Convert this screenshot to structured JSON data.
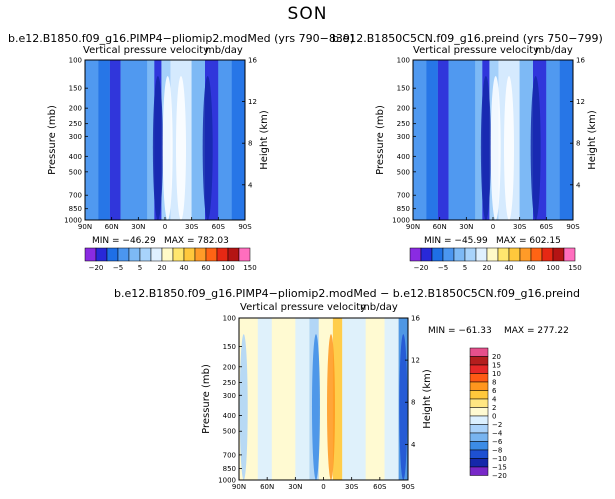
{
  "figure": {
    "title": "SON"
  },
  "panels": [
    {
      "id": "left",
      "case_title": "b.e12.B1850.f09_g16.PIMP4−pliomip2.modMed  (yrs 790−839)",
      "inner_title": "Vertical pressure velocity",
      "units": "mb/day",
      "min_text": "MIN = −46.29",
      "max_text": "MAX = 782.03"
    },
    {
      "id": "right",
      "case_title": "b.e12.B1850C5CN.f09_g16.preind  (yrs 750−799)",
      "inner_title": "Vertical pressure velocity",
      "units": "mb/day",
      "min_text": "MIN = −45.99",
      "max_text": "MAX = 602.15"
    },
    {
      "id": "diff",
      "case_title": "b.e12.B1850.f09_g16.PIMP4−pliomip2.modMed  −  b.e12.B1850C5CN.f09_g16.preind",
      "inner_title": "Vertical pressure velocity",
      "units": "mb/day",
      "min_text": "MIN = −61.33",
      "max_text": "MAX = 277.22"
    }
  ],
  "chart_data": {
    "type": "heatmap",
    "title": "SON",
    "xlabel": "",
    "ylabel": "Pressure (mb)",
    "ylabel_right": "Height (km)",
    "x_ticks": [
      "90N",
      "60N",
      "30N",
      "0",
      "30S",
      "60S",
      "90S"
    ],
    "y_ticks": [
      100,
      150,
      200,
      250,
      300,
      400,
      500,
      700,
      850,
      1000
    ],
    "y_ticks_right": [
      16,
      12,
      8,
      4
    ],
    "ylim": [
      100,
      1000
    ],
    "xlim": [
      90,
      -90
    ],
    "colorbar_levels": [
      "−20",
      "−5",
      "5",
      "20",
      "40",
      "60",
      "100",
      "150"
    ],
    "diff_colorbar_levels": [
      "20",
      "15",
      "10",
      "8",
      "6",
      "4",
      "2",
      "0",
      "−2",
      "−4",
      "−6",
      "−8",
      "−10",
      "−15",
      "−20"
    ],
    "abs_colors": [
      "#8a2be2",
      "#2828d8",
      "#1e6fe6",
      "#4b96f0",
      "#7db9f5",
      "#a8d3fb",
      "#dff0ff",
      "#fffac8",
      "#ffe66e",
      "#ffc83c",
      "#ff9b28",
      "#ff6414",
      "#e62814",
      "#b41414",
      "#ff6ebe"
    ],
    "diff_colors": [
      "#e6508c",
      "#b41e1e",
      "#e62828",
      "#ff5a14",
      "#ff961e",
      "#ffc83c",
      "#ffe682",
      "#fffad2",
      "#dcf0ff",
      "#aad2fa",
      "#78b4f0",
      "#3c8ce6",
      "#1e50d2",
      "#1428aa",
      "#7828c8"
    ]
  }
}
